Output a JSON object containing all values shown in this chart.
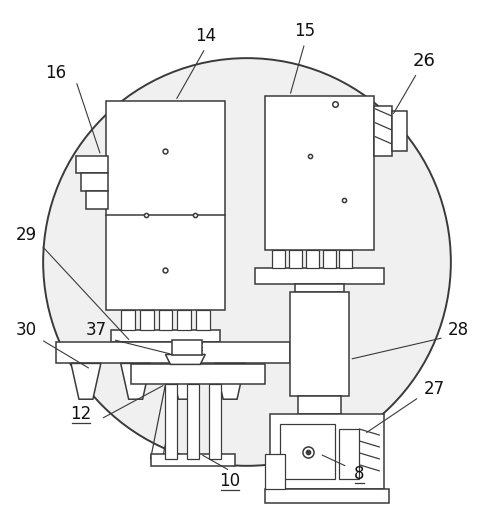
{
  "bg_color": "#ffffff",
  "line_color": "#3a3a3a",
  "lw": 1.1
}
